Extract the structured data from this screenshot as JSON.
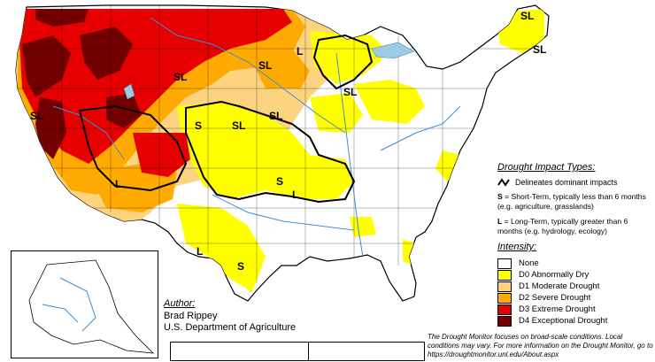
{
  "map": {
    "region_labels": [
      "SL",
      "SL",
      "SL",
      "SL",
      "SL",
      "SL",
      "SL",
      "SL",
      "L",
      "L",
      "L",
      "L",
      "S",
      "S",
      "S"
    ]
  },
  "legend": {
    "impact_title": "Drought Impact Types:",
    "delineates": "Delineates dominant impacts",
    "s_code": "S",
    "s_text": " = Short-Term, typically less than 6 months (e.g. agriculture, grasslands)",
    "l_code": "L",
    "l_text": " = Long-Term, typically greater than 6 months (e.g. hydrology, ecology)",
    "intensity_title": "Intensity:",
    "categories": [
      {
        "label": "None",
        "color": "#ffffff"
      },
      {
        "label": "D0 Abnormally Dry",
        "color": "#ffff00"
      },
      {
        "label": "D1 Moderate Drought",
        "color": "#fcd37f"
      },
      {
        "label": "D2 Severe Drought",
        "color": "#ffaa00"
      },
      {
        "label": "D3 Extreme Drought",
        "color": "#e60000"
      },
      {
        "label": "D4 Exceptional Drought",
        "color": "#730000"
      }
    ]
  },
  "author": {
    "title": "Author:",
    "name": "Brad Rippey",
    "org": "U.S. Department of Agriculture"
  },
  "note": "The Drought Monitor focuses on broad-scale conditions. Local conditions may vary. For more information on the Drought Monitor, go to https://droughtmonitor.unl.edu/About.aspx"
}
